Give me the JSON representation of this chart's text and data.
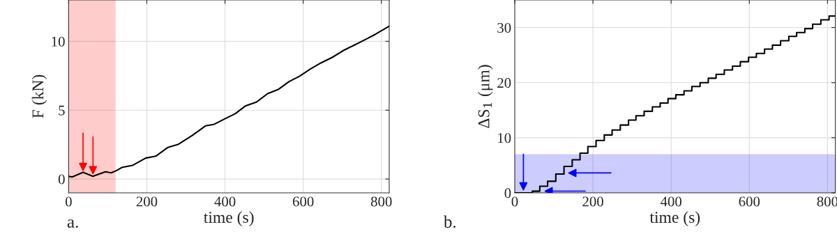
{
  "chart_data": [
    {
      "type": "line",
      "xlabel": "time (s)",
      "ylabel": "F (kN)",
      "xlim": [
        0,
        820
      ],
      "ylim": [
        -1,
        13
      ],
      "xticks": [
        0,
        200,
        400,
        600,
        800
      ],
      "yticks": [
        0,
        5,
        10
      ],
      "grid": true,
      "x": [
        0,
        9,
        37,
        62,
        94,
        109,
        123,
        136,
        164,
        197,
        223,
        254,
        281,
        316,
        350,
        371,
        398,
        426,
        453,
        481,
        509,
        536,
        564,
        591,
        619,
        646,
        674,
        702,
        729,
        757,
        784,
        820
      ],
      "series": [
        {
          "color": "#000000",
          "values": [
            0.2,
            0.15,
            0.49,
            0.2,
            0.53,
            0.45,
            0.62,
            0.84,
            1.0,
            1.52,
            1.66,
            2.3,
            2.53,
            3.16,
            3.86,
            3.96,
            4.35,
            4.74,
            5.32,
            5.6,
            6.2,
            6.5,
            7.08,
            7.47,
            8.0,
            8.44,
            8.83,
            9.32,
            9.7,
            10.1,
            10.5,
            11.1
          ]
        }
      ],
      "bands": [
        {
          "axis": "x",
          "from": 0,
          "to": 120,
          "color": "#ff0000"
        }
      ],
      "annotations": [
        "a."
      ]
    },
    {
      "type": "step",
      "xlabel": "time (s)",
      "ylabel": "ΔS$_{1}$ (μm)",
      "xlim": [
        0,
        820
      ],
      "ylim": [
        0,
        35
      ],
      "xticks": [
        0,
        200,
        400,
        600,
        800
      ],
      "yticks": [
        0,
        10,
        20,
        30
      ],
      "grid": true,
      "x": [
        0,
        45,
        64,
        84,
        105,
        126,
        147,
        167,
        187,
        208,
        229,
        249,
        270,
        291,
        310,
        331,
        352,
        372,
        392,
        412,
        433,
        453,
        474,
        495,
        515,
        536,
        557,
        577,
        598,
        618,
        639,
        659,
        680,
        701,
        721,
        742,
        762,
        783,
        804,
        820
      ],
      "series": [
        {
          "color": "#000000",
          "values": [
            0,
            0.3,
            1.2,
            2.1,
            3.4,
            4.8,
            6.0,
            7.2,
            8.4,
            9.5,
            10.5,
            11.4,
            12.3,
            13.2,
            14.0,
            14.8,
            15.6,
            16.3,
            17.1,
            17.8,
            18.5,
            19.3,
            20.0,
            20.8,
            21.5,
            22.3,
            23.0,
            23.8,
            24.6,
            25.3,
            26.1,
            26.8,
            27.6,
            28.4,
            29.1,
            29.8,
            30.6,
            31.4,
            32.1,
            32.1
          ]
        }
      ],
      "bands": [
        {
          "axis": "y",
          "from": 0,
          "to": 7,
          "color": "#0000ff"
        }
      ],
      "annotations": [
        "b."
      ]
    }
  ]
}
